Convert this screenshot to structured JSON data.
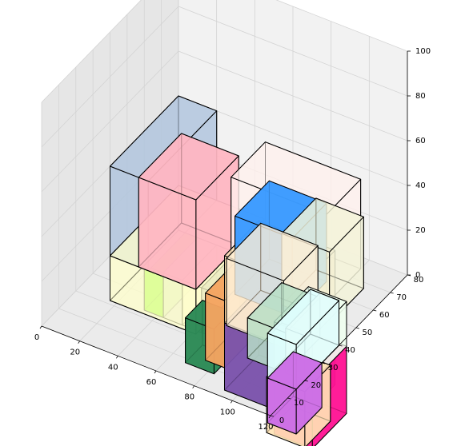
{
  "chart_data": {
    "type": "3d-bar",
    "title": "",
    "xlabel": "",
    "ylabel": "",
    "zlabel": "",
    "xlim": [
      0,
      120
    ],
    "ylim": [
      0,
      80
    ],
    "zlim": [
      0,
      100
    ],
    "x_ticks": [
      "0",
      "20",
      "40",
      "60",
      "80",
      "100",
      "120"
    ],
    "y_ticks": [
      "0",
      "10",
      "20",
      "30",
      "40",
      "50",
      "60",
      "70",
      "80"
    ],
    "z_ticks": [
      "0",
      "20",
      "40",
      "60",
      "80",
      "100"
    ],
    "x_tick_values": [
      0,
      20,
      40,
      60,
      80,
      100,
      120
    ],
    "y_tick_values": [
      0,
      10,
      20,
      30,
      40,
      50,
      60,
      70,
      80
    ],
    "z_tick_values": [
      0,
      20,
      40,
      60,
      80,
      100
    ],
    "grid": true,
    "boxes": [
      {
        "x": [
          50,
          100
        ],
        "y": [
          55,
          75
        ],
        "z": [
          0,
          40
        ],
        "color": "#fff1ec",
        "alpha": 0.55
      },
      {
        "x": [
          70,
          100
        ],
        "y": [
          35,
          55
        ],
        "z": [
          10,
          45
        ],
        "color": "#3c9bff",
        "alpha": 0.85
      },
      {
        "x": [
          90,
          115
        ],
        "y": [
          40,
          60
        ],
        "z": [
          8,
          40
        ],
        "color": "#f4f4d8",
        "alpha": 0.6
      },
      {
        "x": [
          90,
          110
        ],
        "y": [
          20,
          40
        ],
        "z": [
          0,
          18
        ],
        "color": "#b7e0c6",
        "alpha": 0.6
      },
      {
        "x": [
          110,
          120
        ],
        "y": [
          20,
          40
        ],
        "z": [
          0,
          20
        ],
        "color": "#ffe4c4",
        "alpha": 0.6
      },
      {
        "x": [
          105,
          120
        ],
        "y": [
          15,
          40
        ],
        "z": [
          0,
          20
        ],
        "color": "#e0ffff",
        "alpha": 0.7
      },
      {
        "x": [
          105,
          120
        ],
        "y": [
          15,
          30
        ],
        "z": [
          -20,
          0
        ],
        "color": "#cc6fe6",
        "alpha": 0.85
      },
      {
        "x": [
          0,
          20
        ],
        "y": [
          40,
          80
        ],
        "z": [
          0,
          40
        ],
        "color": "#b0c4de",
        "alpha": 0.6
      },
      {
        "x": [
          15,
          45
        ],
        "y": [
          40,
          65
        ],
        "z": [
          0,
          40
        ],
        "color": "#ffb6c1",
        "alpha": 0.75
      },
      {
        "x": [
          0,
          45
        ],
        "y": [
          40,
          80
        ],
        "z": [
          -20,
          0
        ],
        "color": "#ffffcc",
        "alpha": 0.5
      },
      {
        "x": [
          0,
          10
        ],
        "y": [
          60,
          80
        ],
        "z": [
          -40,
          -20
        ],
        "color": "#7cfc00",
        "alpha": 0.85
      },
      {
        "x": [
          10,
          20
        ],
        "y": [
          60,
          80
        ],
        "z": [
          -40,
          -20
        ],
        "color": "#dcdcdc",
        "alpha": 0.6
      },
      {
        "x": [
          20,
          30
        ],
        "y": [
          60,
          80
        ],
        "z": [
          -40,
          -20
        ],
        "color": "#fffacd",
        "alpha": 0.6
      },
      {
        "x": [
          30,
          40
        ],
        "y": [
          60,
          80
        ],
        "z": [
          -40,
          -20
        ],
        "color": "#a9a9a9",
        "alpha": 0.6
      },
      {
        "x": [
          35,
          50
        ],
        "y": [
          45,
          55
        ],
        "z": [
          -40,
          -20
        ],
        "color": "#2e8b57",
        "alpha": 0.85
      },
      {
        "x": [
          50,
          60
        ],
        "y": [
          40,
          60
        ],
        "z": [
          -30,
          0
        ],
        "color": "#f4a460",
        "alpha": 0.8
      },
      {
        "x": [
          60,
          100
        ],
        "y": [
          40,
          60
        ],
        "z": [
          -40,
          -10
        ],
        "color": "#7b52ab",
        "alpha": 0.8
      },
      {
        "x": [
          60,
          100
        ],
        "y": [
          40,
          60
        ],
        "z": [
          -10,
          20
        ],
        "color": "#f5deb3",
        "alpha": 0.55
      },
      {
        "x": [
          70,
          100
        ],
        "y": [
          30,
          50
        ],
        "z": [
          0,
          30
        ],
        "color": "#ffefd5",
        "alpha": 0.55
      },
      {
        "x": [
          95,
          115
        ],
        "y": [
          30,
          50
        ],
        "z": [
          -40,
          -10
        ],
        "color": "#ff1493",
        "alpha": 0.8
      },
      {
        "x": [
          95,
          115
        ],
        "y": [
          30,
          50
        ],
        "z": [
          -10,
          10
        ],
        "color": "#f0fff0",
        "alpha": 0.7
      },
      {
        "x": [
          100,
          120
        ],
        "y": [
          20,
          35
        ],
        "z": [
          -30,
          -5
        ],
        "color": "#ffe4b5",
        "alpha": 0.7
      }
    ]
  }
}
